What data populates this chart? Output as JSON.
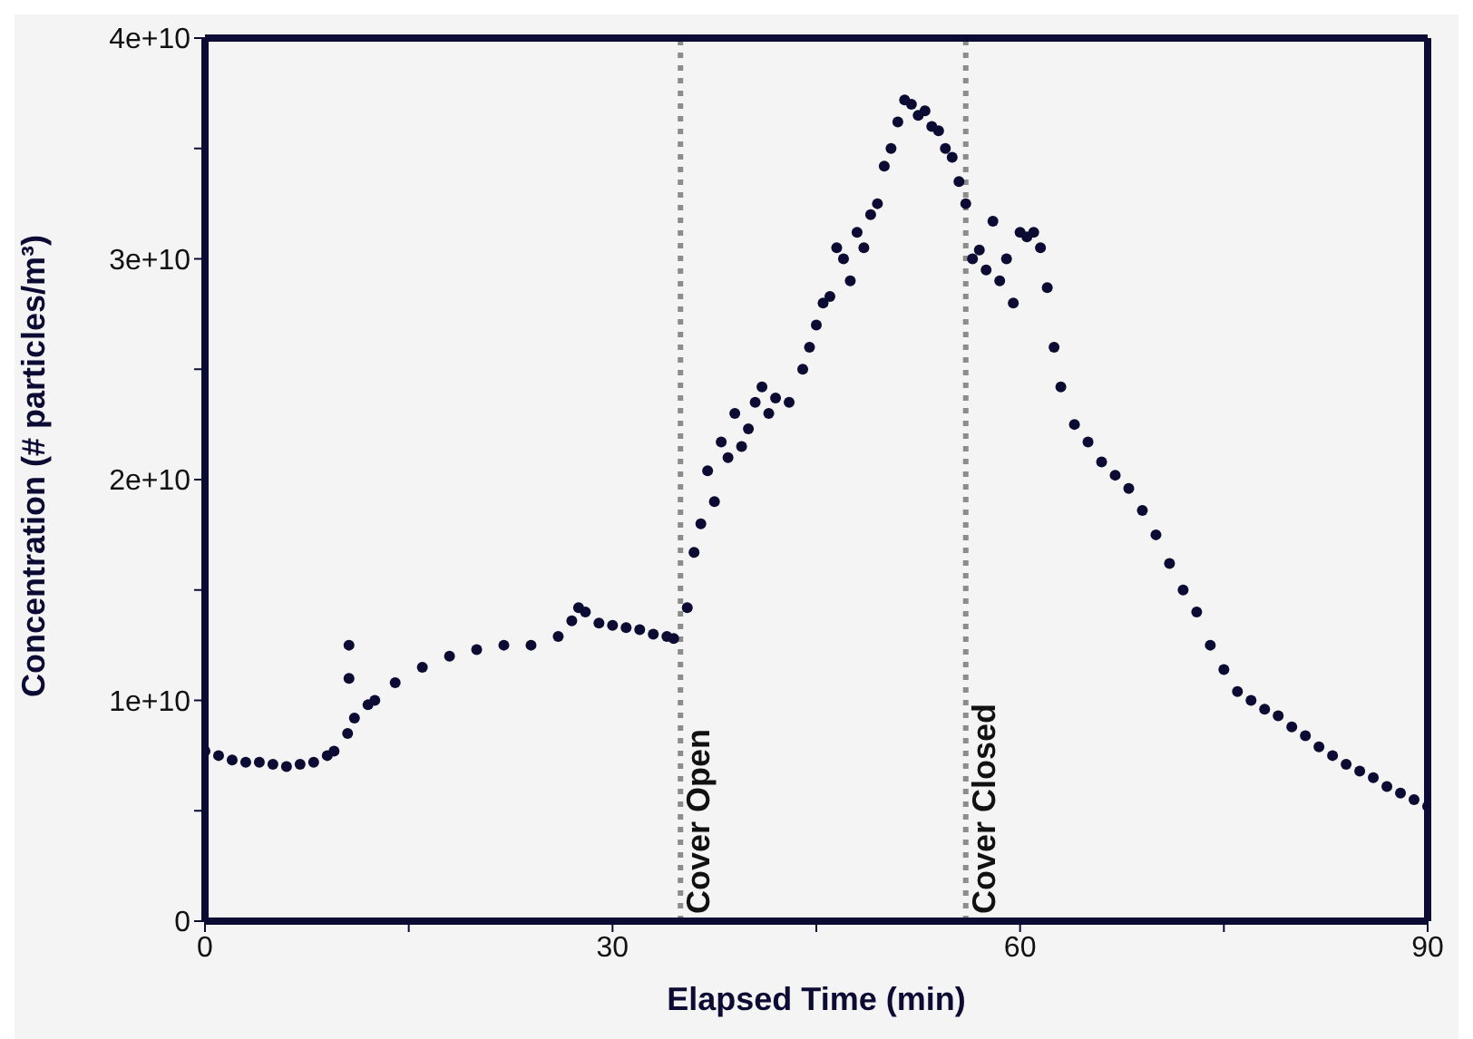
{
  "chart_data": {
    "type": "scatter",
    "xlabel": "Elapsed Time (min)",
    "ylabel": "Concentration (# particles/m³)",
    "marker": "circle",
    "xlim": [
      0,
      90
    ],
    "xticks": [
      0,
      {
        "value": 15,
        "label": null
      },
      30,
      {
        "value": 45,
        "label": null
      },
      60,
      {
        "value": 75,
        "label": null
      },
      90
    ],
    "ylim": [
      0,
      40000000000.0
    ],
    "yticks": [
      0,
      {
        "value": 5000000000.0,
        "label": null
      },
      {
        "value": 10000000000.0,
        "label": "1e+10"
      },
      {
        "value": 15000000000.0,
        "label": null
      },
      {
        "value": 20000000000.0,
        "label": "2e+10"
      },
      {
        "value": 25000000000.0,
        "label": null
      },
      {
        "value": 30000000000.0,
        "label": "3e+10"
      },
      {
        "value": 35000000000.0,
        "label": null
      },
      {
        "value": 40000000000.0,
        "label": "4e+10"
      }
    ],
    "ref_lines": [
      {
        "axis": "x",
        "value": 35,
        "label": "Cover Open",
        "color": "#8c8c8c",
        "line_style": "dotted"
      },
      {
        "axis": "x",
        "value": 56,
        "label": "Cover Closed",
        "color": "#8c8c8c",
        "line_style": "dotted"
      }
    ],
    "series": [
      {
        "color": "#0b0b33",
        "x": [
          0,
          1,
          2,
          3,
          4,
          5,
          6,
          7,
          8,
          9,
          9.5,
          10.5,
          10.6,
          10.6,
          11,
          12,
          12.5,
          14,
          16,
          18,
          20,
          22,
          24,
          26,
          27,
          27.5,
          28,
          29,
          30,
          31,
          32,
          33,
          34,
          34.5,
          35.5,
          36,
          36.5,
          37,
          37.5,
          38,
          38.5,
          39,
          39.5,
          40,
          40.5,
          41,
          41.5,
          42,
          43,
          44,
          44.5,
          45,
          45.5,
          46,
          46.5,
          47,
          47.5,
          48,
          48.5,
          49,
          49.5,
          50,
          50.5,
          51,
          51.5,
          52,
          52.5,
          53,
          53.5,
          54,
          54.5,
          55,
          55.5,
          56,
          56.5,
          57,
          57.5,
          58,
          58.5,
          59,
          59.5,
          60,
          60.5,
          61,
          61.5,
          62,
          62.5,
          63,
          64,
          65,
          66,
          67,
          68,
          69,
          70,
          71,
          72,
          73,
          74,
          75,
          76,
          77,
          78,
          79,
          80,
          81,
          82,
          83,
          84,
          85,
          86,
          87,
          88,
          89,
          90
        ],
        "values": [
          7700000000.0,
          7500000000.0,
          7300000000.0,
          7200000000.0,
          7200000000.0,
          7100000000.0,
          7000000000.0,
          7100000000.0,
          7200000000.0,
          7500000000.0,
          7700000000.0,
          8500000000.0,
          12500000000.0,
          11000000000.0,
          9200000000.0,
          9800000000.0,
          10000000000.0,
          10800000000.0,
          11500000000.0,
          12000000000.0,
          12300000000.0,
          12500000000.0,
          12500000000.0,
          12900000000.0,
          13600000000.0,
          14200000000.0,
          14000000000.0,
          13500000000.0,
          13400000000.0,
          13300000000.0,
          13200000000.0,
          13000000000.0,
          12900000000.0,
          12800000000.0,
          14200000000.0,
          16700000000.0,
          18000000000.0,
          20400000000.0,
          19000000000.0,
          21700000000.0,
          21000000000.0,
          23000000000.0,
          21500000000.0,
          22300000000.0,
          23500000000.0,
          24200000000.0,
          23000000000.0,
          23700000000.0,
          23500000000.0,
          25000000000.0,
          26000000000.0,
          27000000000.0,
          28000000000.0,
          28300000000.0,
          30500000000.0,
          30000000000.0,
          29000000000.0,
          31200000000.0,
          30500000000.0,
          32000000000.0,
          32500000000.0,
          34200000000.0,
          35000000000.0,
          36200000000.0,
          37200000000.0,
          37000000000.0,
          36500000000.0,
          36700000000.0,
          36000000000.0,
          35800000000.0,
          35000000000.0,
          34600000000.0,
          33500000000.0,
          32500000000.0,
          30000000000.0,
          30400000000.0,
          29500000000.0,
          31700000000.0,
          29000000000.0,
          30000000000.0,
          28000000000.0,
          31200000000.0,
          31000000000.0,
          31200000000.0,
          30500000000.0,
          28700000000.0,
          26000000000.0,
          24200000000.0,
          22500000000.0,
          21700000000.0,
          20800000000.0,
          20200000000.0,
          19600000000.0,
          18600000000.0,
          17500000000.0,
          16200000000.0,
          15000000000.0,
          14000000000.0,
          12500000000.0,
          11400000000.0,
          10400000000.0,
          10000000000.0,
          9600000000.0,
          9300000000.0,
          8800000000.0,
          8400000000.0,
          7900000000.0,
          7500000000.0,
          7100000000.0,
          6800000000.0,
          6500000000.0,
          6100000000.0,
          5800000000.0,
          5500000000.0,
          5200000000.0
        ]
      }
    ]
  }
}
